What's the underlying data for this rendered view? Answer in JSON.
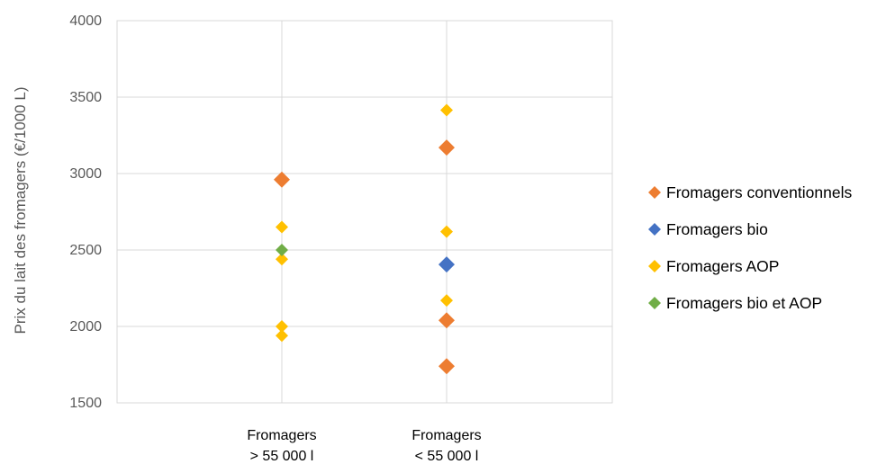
{
  "chart_data": {
    "type": "scatter",
    "title": "",
    "xlabel": "",
    "ylabel": "Prix du lait des fromagers (€/1000 L)",
    "ylim": [
      1500,
      4000
    ],
    "yticks": [
      1500,
      2000,
      2500,
      3000,
      3500,
      4000
    ],
    "categories": [
      [
        "Fromagers",
        "> 55 000 l"
      ],
      [
        "Fromagers",
        "< 55 000 l"
      ]
    ],
    "grid": true,
    "legend_position": "right",
    "series": [
      {
        "name": "Fromagers conventionnels",
        "color": "#ED7D31",
        "marker": "diamond-large",
        "points": [
          {
            "category": 0,
            "y": 2960
          },
          {
            "category": 1,
            "y": 3170
          },
          {
            "category": 1,
            "y": 2040
          },
          {
            "category": 1,
            "y": 1740
          }
        ]
      },
      {
        "name": "Fromagers bio",
        "color": "#4472C4",
        "marker": "diamond-large",
        "points": [
          {
            "category": 1,
            "y": 2405
          }
        ]
      },
      {
        "name": "Fromagers AOP",
        "color": "#FFC000",
        "marker": "diamond",
        "points": [
          {
            "category": 0,
            "y": 2650
          },
          {
            "category": 0,
            "y": 2440
          },
          {
            "category": 0,
            "y": 2000
          },
          {
            "category": 0,
            "y": 1940
          },
          {
            "category": 1,
            "y": 3415
          },
          {
            "category": 1,
            "y": 2620
          },
          {
            "category": 1,
            "y": 2170
          }
        ]
      },
      {
        "name": "Fromagers bio et AOP",
        "color": "#70AD47",
        "marker": "diamond",
        "points": [
          {
            "category": 0,
            "y": 2500
          }
        ]
      }
    ]
  }
}
